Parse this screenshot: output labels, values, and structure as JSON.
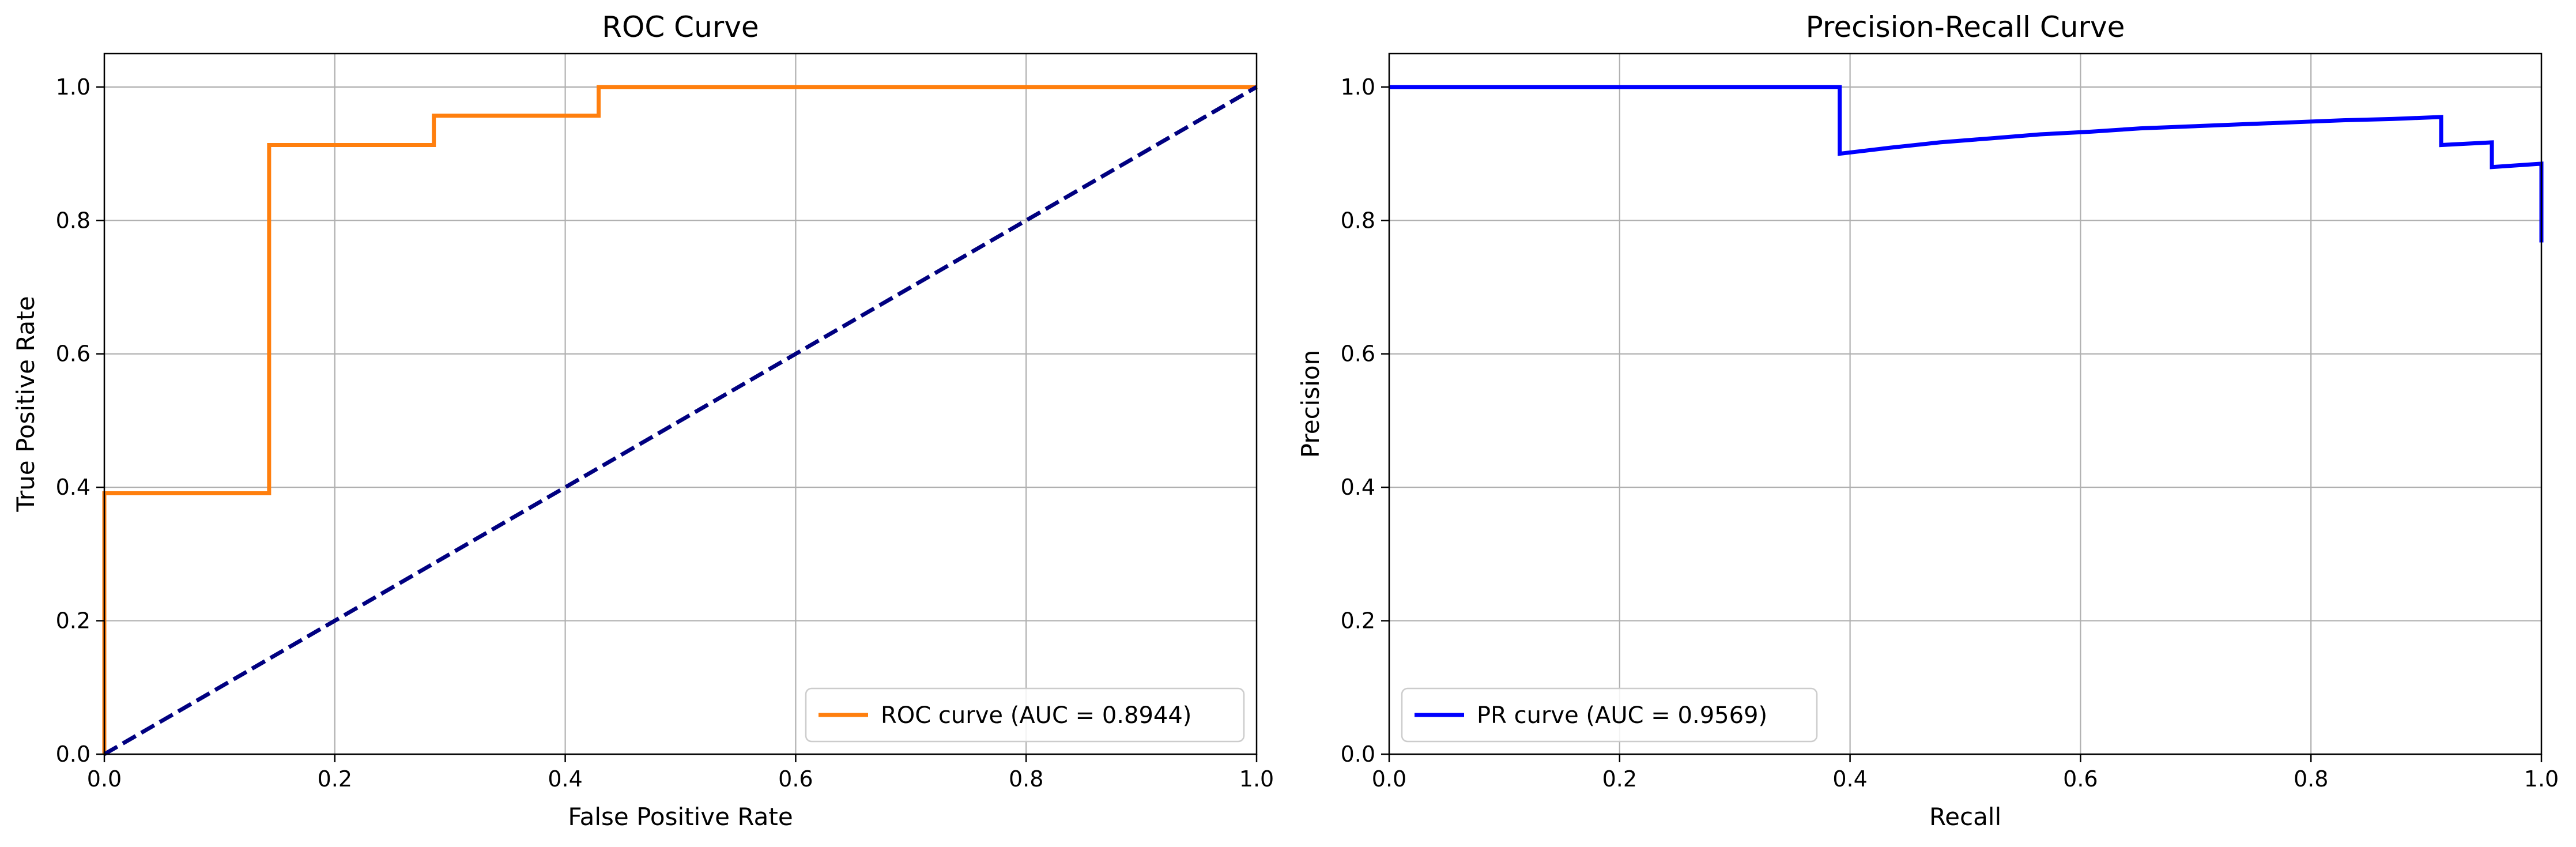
{
  "chart_data": [
    {
      "type": "line",
      "title": "ROC Curve",
      "xlabel": "False Positive Rate",
      "ylabel": "True Positive Rate",
      "xlim": [
        0,
        1
      ],
      "ylim": [
        0,
        1.05
      ],
      "xticks": [
        0.0,
        0.2,
        0.4,
        0.6,
        0.8,
        1.0
      ],
      "yticks": [
        0.0,
        0.2,
        0.4,
        0.6,
        0.8,
        1.0
      ],
      "xtick_labels": [
        "0.0",
        "0.2",
        "0.4",
        "0.6",
        "0.8",
        "1.0"
      ],
      "ytick_labels": [
        "0.0",
        "0.2",
        "0.4",
        "0.6",
        "0.8",
        "1.0"
      ],
      "grid": true,
      "legend_position": "lower-right",
      "series": [
        {
          "name": "ROC curve (AUC = 0.8944)",
          "color": "#ff7f0e",
          "style": "solid",
          "x": [
            0.0,
            0.0,
            0.0,
            0.143,
            0.143,
            0.286,
            0.286,
            0.429,
            0.429,
            1.0
          ],
          "y": [
            0.0,
            0.043,
            0.391,
            0.391,
            0.913,
            0.913,
            0.957,
            0.957,
            1.0,
            1.0
          ]
        },
        {
          "name": "",
          "color": "#000080",
          "style": "dashed",
          "x": [
            0,
            1
          ],
          "y": [
            0,
            1
          ]
        }
      ]
    },
    {
      "type": "line",
      "title": "Precision-Recall Curve",
      "xlabel": "Recall",
      "ylabel": "Precision",
      "xlim": [
        0,
        1
      ],
      "ylim": [
        0,
        1.05
      ],
      "xticks": [
        0.0,
        0.2,
        0.4,
        0.6,
        0.8,
        1.0
      ],
      "yticks": [
        0.0,
        0.2,
        0.4,
        0.6,
        0.8,
        1.0
      ],
      "xtick_labels": [
        "0.0",
        "0.2",
        "0.4",
        "0.6",
        "0.8",
        "1.0"
      ],
      "ytick_labels": [
        "0.0",
        "0.2",
        "0.4",
        "0.6",
        "0.8",
        "1.0"
      ],
      "grid": true,
      "legend_position": "lower-left",
      "series": [
        {
          "name": "PR curve (AUC = 0.9569)",
          "color": "#0000ff",
          "style": "solid",
          "x": [
            0.0,
            0.391,
            0.391,
            0.435,
            0.478,
            0.522,
            0.565,
            0.609,
            0.652,
            0.696,
            0.739,
            0.783,
            0.826,
            0.87,
            0.913,
            0.913,
            0.957,
            0.957,
            1.0,
            1.0
          ],
          "y": [
            1.0,
            1.0,
            0.9,
            0.909,
            0.917,
            0.923,
            0.929,
            0.933,
            0.938,
            0.941,
            0.944,
            0.947,
            0.95,
            0.952,
            0.955,
            0.913,
            0.917,
            0.88,
            0.885,
            0.767
          ]
        }
      ]
    }
  ]
}
